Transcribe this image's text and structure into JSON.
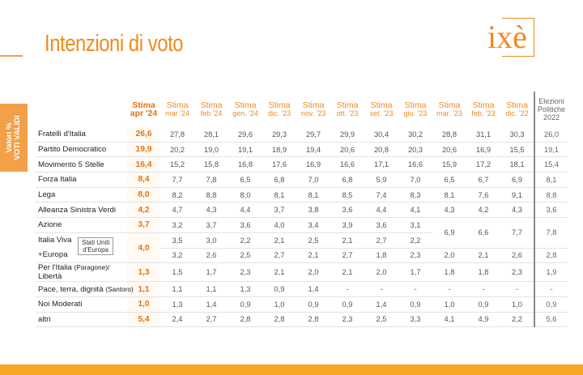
{
  "title": "Intenzioni di voto",
  "logo": "ixè",
  "side_label": {
    "line1": "Valori %",
    "line2": "VOTI VALIDI"
  },
  "columns": [
    {
      "m": "Stima",
      "y": "apr '24"
    },
    {
      "m": "Stima",
      "y": "mar '24"
    },
    {
      "m": "Stima",
      "y": "feb '24"
    },
    {
      "m": "Stima",
      "y": "gen. '24"
    },
    {
      "m": "Stima",
      "y": "dic. '23"
    },
    {
      "m": "Stima",
      "y": "nov. '23"
    },
    {
      "m": "Stima",
      "y": "ott. '23"
    },
    {
      "m": "Stima",
      "y": "set. '23"
    },
    {
      "m": "Stima",
      "y": "giu. '23"
    },
    {
      "m": "Stima",
      "y": "mar. '23"
    },
    {
      "m": "Stima",
      "y": "feb. '23"
    },
    {
      "m": "Stima",
      "y": "dic. '22"
    }
  ],
  "election_header": [
    "Elezioni",
    "Politiche",
    "2022"
  ],
  "rows": [
    {
      "name": "Fratelli d'Italia",
      "values": [
        "26,6",
        "27,8",
        "28,1",
        "29,6",
        "29,3",
        "29,7",
        "29,9",
        "30,4",
        "30,2",
        "28,8",
        "31,1",
        "30,3"
      ],
      "el": "26,0"
    },
    {
      "name": "Partito Democratico",
      "values": [
        "19,9",
        "20,2",
        "19,0",
        "19,1",
        "18,9",
        "19,4",
        "20,6",
        "20,8",
        "20,3",
        "20,6",
        "16,9",
        "15,5"
      ],
      "el": "19,1"
    },
    {
      "name": "Movimento 5 Stelle",
      "values": [
        "16,4",
        "15,2",
        "15,8",
        "16,8",
        "17,6",
        "16,9",
        "16,6",
        "17,1",
        "16,6",
        "15,9",
        "17,2",
        "18,1"
      ],
      "el": "15,4"
    },
    {
      "name": "Forza Italia",
      "values": [
        "8,4",
        "7,7",
        "7,8",
        "6,5",
        "6,8",
        "7,0",
        "6,8",
        "5,9",
        "7,0",
        "6,5",
        "6,7",
        "6,9"
      ],
      "el": "8,1"
    },
    {
      "name": "Lega",
      "values": [
        "8,0",
        "8,2",
        "8,8",
        "8,0",
        "8,1",
        "8,1",
        "8,5",
        "7,4",
        "8,3",
        "8,1",
        "7,6",
        "9,1"
      ],
      "el": "8,8"
    },
    {
      "name": "Alleanza Sinistra Verdi",
      "values": [
        "4,2",
        "4,7",
        "4,3",
        "4,4",
        "3,7",
        "3,8",
        "3,6",
        "4,4",
        "4,1",
        "4,3",
        "4,2",
        "4,3"
      ],
      "el": "3,6"
    }
  ],
  "group": {
    "azione": {
      "name": "Azione",
      "values": [
        "3,7",
        "3,2",
        "3,7",
        "3,6",
        "4,0",
        "3,4",
        "3,9",
        "3,6",
        "3,1"
      ]
    },
    "italia_viva": {
      "name": "Italia Viva",
      "values": [
        "3,5",
        "3,0",
        "2,2",
        "2,1",
        "2,5",
        "2,1",
        "2,7",
        "2,2"
      ]
    },
    "europa": {
      "name": "+Europa",
      "values": [
        "3,2",
        "2,6",
        "2,5",
        "2,7",
        "2,1",
        "2,7",
        "1,8",
        "2,3",
        "2,0",
        "2,1",
        "2,6"
      ],
      "el": "2,8"
    },
    "su_label": [
      "Stati Uniti",
      "d'Europa"
    ],
    "merged_cur": "4,0",
    "merged_az_iv": [
      "6,9",
      "6,6",
      "7,7"
    ],
    "merged_el": "7,8"
  },
  "tail_rows": [
    {
      "name": "Per l'Italia",
      "small": "(Paragone)/",
      "name2": "Libertà",
      "values": [
        "1,3",
        "1,5",
        "1,7",
        "2,3",
        "2,1",
        "2,0",
        "2,1",
        "2,0",
        "1,7",
        "1,8",
        "1,8",
        "2,3"
      ],
      "el": "1,9"
    },
    {
      "name": "Pace, terra, dignità",
      "small": "(Santoro)",
      "values": [
        "1,1",
        "1,1",
        "1,1",
        "1,3",
        "0,9",
        "1,4",
        "-",
        "-",
        "-",
        "-",
        "-",
        "-"
      ],
      "el": "-"
    },
    {
      "name": "Noi Moderati",
      "values": [
        "1,0",
        "1,3",
        "1,4",
        "0,9",
        "1,0",
        "0,9",
        "0,9",
        "1,4",
        "0,9",
        "1,0",
        "0,9",
        "1,0"
      ],
      "el": "0,9"
    },
    {
      "name": "altri",
      "values": [
        "5,4",
        "2,4",
        "2,7",
        "2,8",
        "2,8",
        "2,8",
        "2,3",
        "2,5",
        "3,3",
        "4,1",
        "4,9",
        "2,2"
      ],
      "el": "5,6"
    }
  ],
  "colors": {
    "accent": "#f08a1c",
    "bar": "#f5a623"
  }
}
